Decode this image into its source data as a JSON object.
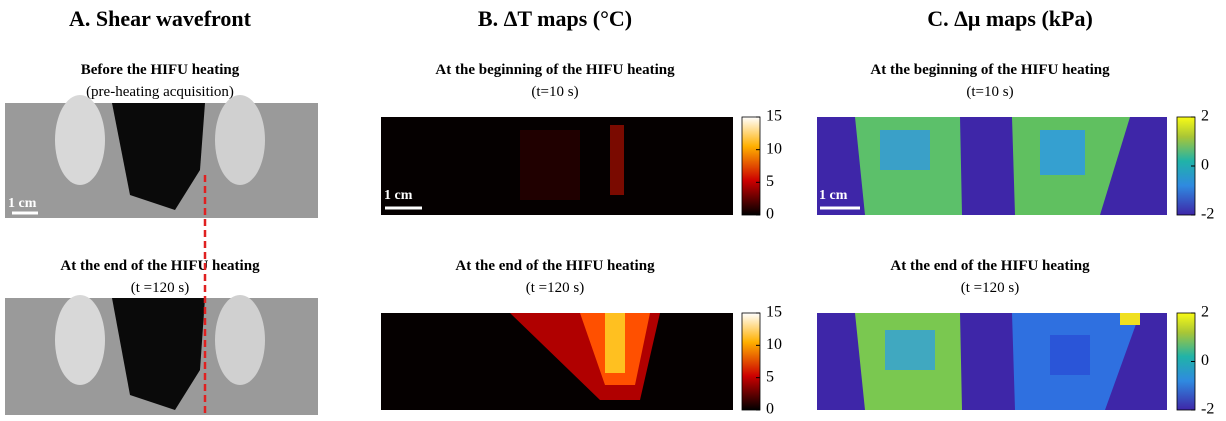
{
  "panels": [
    {
      "title": "A. Shear wavefront",
      "rows": [
        {
          "caption": "Before the HIFU heating",
          "subcaption": "(pre-heating acquisition)",
          "scale_label": "1 cm"
        },
        {
          "caption": "At the end of the HIFU heating",
          "subcaption": "(t =120 s)"
        }
      ]
    },
    {
      "title": "B. ΔT maps (°C)",
      "rows": [
        {
          "caption": "At the beginning of the HIFU heating",
          "subcaption": "(t=10 s)",
          "scale_label": "1 cm"
        },
        {
          "caption": "At the end of the HIFU heating",
          "subcaption": "(t =120 s)"
        }
      ],
      "colorbar": {
        "lim": [
          0,
          15
        ],
        "ticks": [
          0,
          5,
          10,
          15
        ]
      }
    },
    {
      "title": "C. Δμ maps (kPa)",
      "rows": [
        {
          "caption": "At the beginning of the HIFU heating",
          "subcaption": "(t=10 s)",
          "scale_label": "1 cm"
        },
        {
          "caption": "At the end of the HIFU heating",
          "subcaption": "(t =120 s)"
        }
      ],
      "colorbar": {
        "lim": [
          -2,
          2
        ],
        "ticks": [
          -2,
          0,
          2
        ]
      }
    }
  ]
}
